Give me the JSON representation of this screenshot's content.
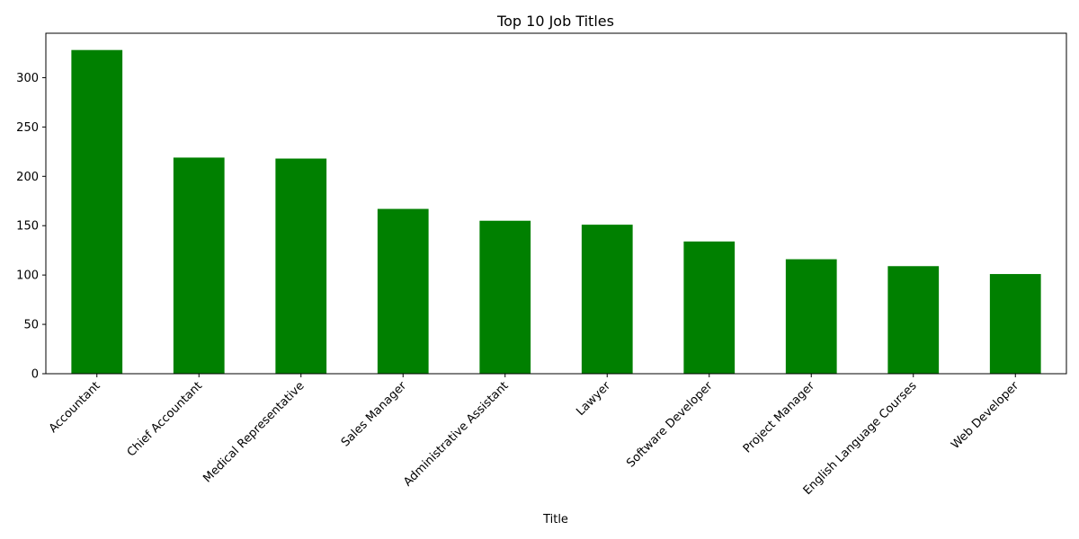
{
  "chart_data": {
    "type": "bar",
    "title": "Top 10 Job Titles",
    "xlabel": "Title",
    "ylabel": "",
    "categories": [
      "Accountant",
      "Chief Accountant",
      "Medical Representative",
      "Sales Manager",
      "Administrative Assistant",
      "Lawyer",
      "Software Developer",
      "Project Manager",
      "English Language Courses",
      "Web Developer"
    ],
    "values": [
      328,
      219,
      218,
      167,
      155,
      151,
      134,
      116,
      109,
      101
    ],
    "ylim": [
      0,
      345
    ],
    "yticks": [
      0,
      50,
      100,
      150,
      200,
      250,
      300
    ],
    "bar_color": "#008000",
    "grid": false,
    "legend": "none"
  }
}
